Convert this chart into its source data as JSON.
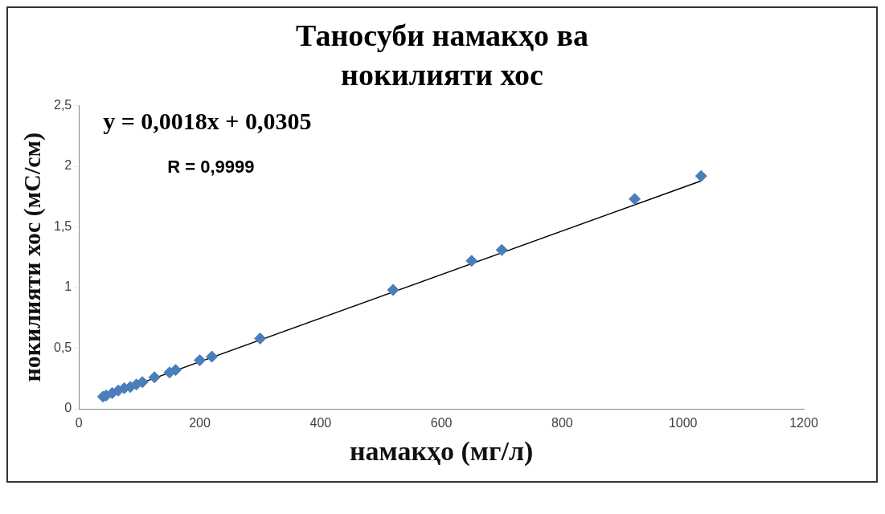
{
  "chart_data": {
    "type": "scatter",
    "title": "Таносуби намакҳо ва нокилияти хос",
    "xlabel": "намакҳо (мг/л)",
    "ylabel": "нокилияти хос (мС/см)",
    "xlim": [
      0,
      1200
    ],
    "xticks": [
      0,
      200,
      400,
      600,
      800,
      1000,
      1200
    ],
    "ylim": [
      0,
      2.5
    ],
    "yticks": [
      0,
      {
        "value": 0.5,
        "label": "0,5"
      },
      1,
      {
        "value": 1.5,
        "label": "1,5"
      },
      2,
      {
        "value": 2.5,
        "label": "2,5"
      }
    ],
    "grid": false,
    "legend": false,
    "annotations": [
      "y = 0,0018x + 0,0305",
      "R = 0,9999"
    ],
    "series": [
      {
        "type": "scatter",
        "marker": "diamond",
        "color": "#4a7ebb",
        "x": [
          40,
          45,
          55,
          65,
          75,
          85,
          95,
          105,
          125,
          150,
          160,
          200,
          220,
          300,
          520,
          650,
          700,
          920,
          1030
        ],
        "values": [
          0.1,
          0.11,
          0.13,
          0.15,
          0.17,
          0.18,
          0.2,
          0.22,
          0.26,
          0.3,
          0.32,
          0.4,
          0.43,
          0.58,
          0.98,
          1.22,
          1.31,
          1.73,
          1.92
        ]
      },
      {
        "type": "line",
        "marker": "none",
        "color": "#000000",
        "x": [
          40,
          1030
        ],
        "values": [
          0.1,
          1.88
        ]
      }
    ]
  }
}
